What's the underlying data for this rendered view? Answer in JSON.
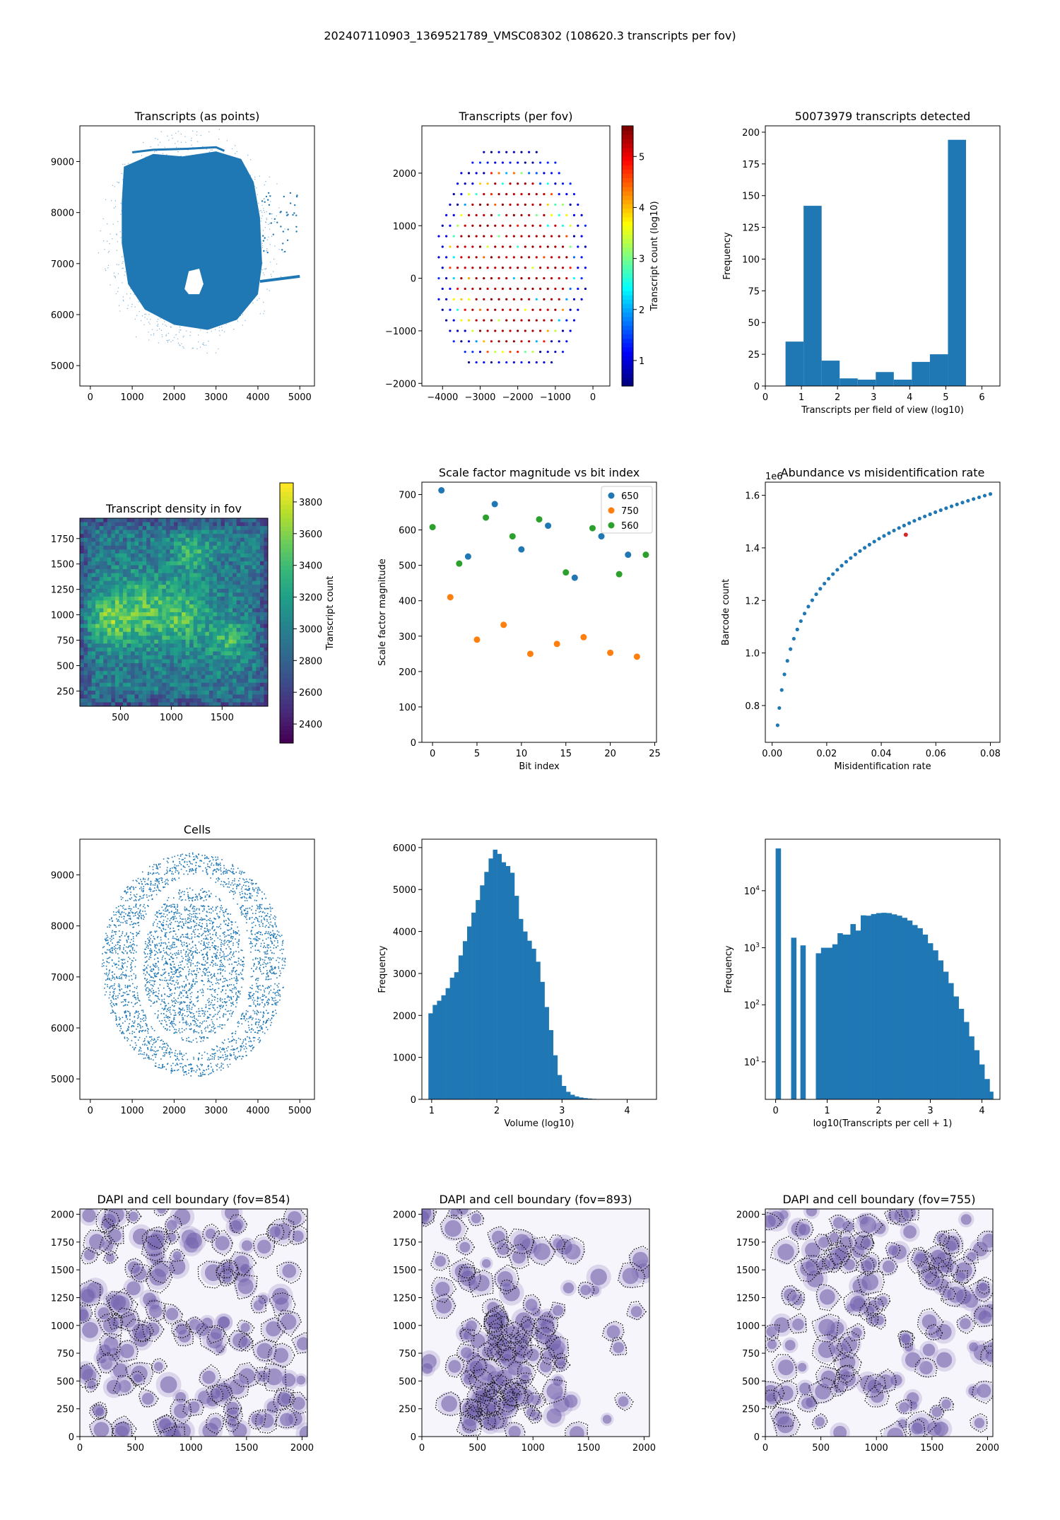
{
  "figure_title": "202407110903_1369521789_VMSC08302 (108620.3 transcripts per fov)",
  "colors": {
    "blue": "#1f77b4",
    "orange": "#ff7f0e",
    "green": "#2ca02c",
    "axis": "#000000"
  },
  "chart_data": [
    {
      "id": "points",
      "type": "scatter",
      "title": "Transcripts (as points)",
      "xlabel": "",
      "ylabel": "",
      "xlim": [
        -250,
        5350
      ],
      "ylim": [
        4600,
        9700
      ],
      "xticks": [
        0,
        1000,
        2000,
        3000,
        4000,
        5000
      ],
      "yticks": [
        5000,
        6000,
        7000,
        8000,
        9000
      ],
      "tissue_outline": [
        [
          800,
          8900
        ],
        [
          1500,
          9150
        ],
        [
          2200,
          9100
        ],
        [
          3000,
          9200
        ],
        [
          3600,
          9050
        ],
        [
          3900,
          8600
        ],
        [
          4050,
          7900
        ],
        [
          4100,
          7000
        ],
        [
          4000,
          6400
        ],
        [
          3500,
          5900
        ],
        [
          2800,
          5700
        ],
        [
          2000,
          5800
        ],
        [
          1300,
          6100
        ],
        [
          900,
          6600
        ],
        [
          750,
          7400
        ],
        [
          750,
          8200
        ]
      ],
      "hole": [
        [
          2250,
          6500
        ],
        [
          2350,
          6850
        ],
        [
          2600,
          6900
        ],
        [
          2700,
          6600
        ],
        [
          2600,
          6400
        ],
        [
          2350,
          6400
        ]
      ],
      "strip": [
        [
          4050,
          6650
        ],
        [
          5000,
          6750
        ]
      ]
    },
    {
      "id": "perfov",
      "type": "scatter",
      "title": "Transcripts (per fov)",
      "xlabel": "",
      "ylabel": "",
      "xlim": [
        -4550,
        450
      ],
      "ylim": [
        -2050,
        2900
      ],
      "xticks": [
        -4000,
        -3000,
        -2000,
        -1000,
        0
      ],
      "yticks": [
        -2000,
        -1000,
        0,
        1000,
        2000
      ],
      "colorbar": {
        "label": "Transcript count (log10)",
        "min": 0.5,
        "max": 5.6,
        "ticks": [
          1,
          2,
          3,
          4,
          5
        ]
      },
      "grid": {
        "x_start": -4200,
        "x_step": 200,
        "y_start": 2600,
        "y_step": -200,
        "rows": 22
      }
    },
    {
      "id": "hist_fov",
      "type": "bar",
      "title": "50073979 transcripts detected",
      "xlabel": "Transcripts per field of view (log10)",
      "ylabel": "Frequency",
      "xlim": [
        0,
        6.5
      ],
      "ylim": [
        0,
        205
      ],
      "xticks": [
        0,
        1,
        2,
        3,
        4,
        5,
        6
      ],
      "yticks": [
        0,
        25,
        50,
        75,
        100,
        125,
        150,
        175,
        200
      ],
      "bin_edges": [
        0.56,
        1.06,
        1.56,
        2.06,
        2.56,
        3.06,
        3.56,
        4.06,
        4.56,
        5.06,
        5.56
      ],
      "values": [
        35,
        142,
        20,
        6,
        5,
        11,
        5,
        19,
        25,
        194
      ]
    },
    {
      "id": "density",
      "type": "heatmap",
      "title": "Transcript density in fov",
      "xlabel": "",
      "ylabel": "",
      "xlim": [
        100,
        1950
      ],
      "ylim": [
        100,
        1950
      ],
      "xticks": [
        500,
        1000,
        1500
      ],
      "yticks": [
        250,
        500,
        750,
        1000,
        1250,
        1500,
        1750
      ],
      "colorbar": {
        "label": "Transcript count",
        "min": 2280,
        "max": 3920,
        "ticks": [
          2400,
          2600,
          2800,
          3000,
          3200,
          3400,
          3600,
          3800
        ]
      }
    },
    {
      "id": "scale",
      "type": "scatter",
      "title": "Scale factor magnitude vs bit index",
      "xlabel": "Bit index",
      "ylabel": "Scale factor magnitude",
      "xlim": [
        -1.2,
        25.2
      ],
      "ylim": [
        0,
        735
      ],
      "xticks": [
        0,
        5,
        10,
        15,
        20,
        25
      ],
      "yticks": [
        0,
        100,
        200,
        300,
        400,
        500,
        600,
        700
      ],
      "legend": "top-right",
      "series": [
        {
          "name": "650",
          "x": [
            1,
            4,
            7,
            10,
            13,
            16,
            19,
            22
          ],
          "y": [
            712,
            525,
            673,
            545,
            612,
            465,
            582,
            530
          ]
        },
        {
          "name": "750",
          "x": [
            2,
            5,
            8,
            11,
            14,
            17,
            20,
            23
          ],
          "y": [
            410,
            290,
            332,
            250,
            278,
            297,
            253,
            242
          ]
        },
        {
          "name": "560",
          "x": [
            0,
            3,
            6,
            9,
            12,
            15,
            18,
            21,
            24
          ],
          "y": [
            608,
            505,
            635,
            582,
            630,
            480,
            605,
            475,
            530
          ]
        }
      ]
    },
    {
      "id": "abundance",
      "type": "scatter",
      "title": "Abundance vs misidentification rate",
      "xlabel": "Misidentification rate",
      "ylabel": "Barcode count",
      "multiplier": "1e6",
      "xlim": [
        -0.0025,
        0.0835
      ],
      "ylim": [
        0.66,
        1.65
      ],
      "xticks": [
        0.0,
        0.02,
        0.04,
        0.06,
        0.08
      ],
      "yticks": [
        0.8,
        1.0,
        1.2,
        1.4,
        1.6
      ],
      "xtick_labels": [
        "0.00",
        "0.02",
        "0.04",
        "0.06",
        "0.08"
      ],
      "ytick_labels": [
        "0.8",
        "1.0",
        "1.2",
        "1.4",
        "1.6"
      ],
      "curve": {
        "x_min": 0.002,
        "x_max": 0.08,
        "points": 48
      },
      "highlight": {
        "x": 0.049,
        "y": 1.45
      }
    },
    {
      "id": "cells",
      "type": "scatter",
      "title": "Cells",
      "xlabel": "",
      "ylabel": "",
      "xlim": [
        -250,
        5350
      ],
      "ylim": [
        4600,
        9700
      ],
      "xticks": [
        0,
        1000,
        2000,
        3000,
        4000,
        5000
      ],
      "yticks": [
        5000,
        6000,
        7000,
        8000,
        9000
      ]
    },
    {
      "id": "volume",
      "type": "bar",
      "title": "",
      "xlabel": "Volume (log10)",
      "ylabel": "Frequency",
      "xlim": [
        0.85,
        4.45
      ],
      "ylim": [
        0,
        6200
      ],
      "xticks": [
        1,
        2,
        3,
        4
      ],
      "yticks": [
        0,
        1000,
        2000,
        3000,
        4000,
        5000,
        6000
      ],
      "bin_start": 0.95,
      "bin_width": 0.066,
      "values": [
        2050,
        2250,
        2350,
        2480,
        2650,
        2900,
        3030,
        3430,
        3770,
        4120,
        4450,
        4750,
        5100,
        5420,
        5740,
        5950,
        5850,
        5650,
        5560,
        5400,
        4850,
        4300,
        4000,
        3780,
        3590,
        3280,
        2800,
        2200,
        1650,
        1050,
        580,
        320,
        180,
        110,
        70,
        45,
        30,
        20,
        12,
        8
      ]
    },
    {
      "id": "tpc",
      "type": "bar",
      "title": "",
      "xlabel": "log10(Transcripts per cell + 1)",
      "ylabel": "Frequency",
      "xscale": "linear",
      "yscale": "log",
      "xlim": [
        -0.2,
        4.35
      ],
      "ylim": [
        2.2,
        80000
      ],
      "xticks": [
        0,
        1,
        2,
        3,
        4
      ],
      "yticks": [
        10,
        100,
        1000,
        10000
      ],
      "ytick_labels": [
        "10",
        "10",
        "10",
        "10"
      ],
      "ytick_exponents": [
        "1",
        "2",
        "3",
        "4"
      ],
      "bins": [
        {
          "x0": 0.0,
          "x1": 0.1,
          "v": 55000
        },
        {
          "x0": 0.3,
          "x1": 0.4,
          "v": 1500
        },
        {
          "x0": 0.48,
          "x1": 0.58,
          "v": 1100
        },
        {
          "x0": 0.78,
          "x1": 0.88,
          "v": 800
        },
        {
          "x0": 0.88,
          "x1": 1.1,
          "v": 1000
        },
        {
          "x0": 1.1,
          "x1": 1.2,
          "v": 1150
        },
        {
          "x0": 1.2,
          "x1": 1.3,
          "v": 1800
        },
        {
          "x0": 1.3,
          "x1": 1.45,
          "v": 1700
        },
        {
          "x0": 1.45,
          "x1": 1.55,
          "v": 2600
        },
        {
          "x0": 1.55,
          "x1": 1.65,
          "v": 2000
        },
        {
          "x0": 1.65,
          "x1": 1.75,
          "v": 3700
        },
        {
          "x0": 1.75,
          "x1": 1.85,
          "v": 3650
        },
        {
          "x0": 1.85,
          "x1": 1.95,
          "v": 3900
        },
        {
          "x0": 1.95,
          "x1": 2.05,
          "v": 4050
        },
        {
          "x0": 2.05,
          "x1": 2.15,
          "v": 4100
        },
        {
          "x0": 2.15,
          "x1": 2.25,
          "v": 4050
        },
        {
          "x0": 2.25,
          "x1": 2.35,
          "v": 3850
        },
        {
          "x0": 2.35,
          "x1": 2.45,
          "v": 3650
        },
        {
          "x0": 2.45,
          "x1": 2.55,
          "v": 3350
        },
        {
          "x0": 2.55,
          "x1": 2.65,
          "v": 3000
        },
        {
          "x0": 2.65,
          "x1": 2.75,
          "v": 2500
        },
        {
          "x0": 2.75,
          "x1": 2.85,
          "v": 2200
        },
        {
          "x0": 2.85,
          "x1": 2.95,
          "v": 1700
        },
        {
          "x0": 2.95,
          "x1": 3.05,
          "v": 1200
        },
        {
          "x0": 3.05,
          "x1": 3.15,
          "v": 900
        },
        {
          "x0": 3.15,
          "x1": 3.25,
          "v": 600
        },
        {
          "x0": 3.25,
          "x1": 3.35,
          "v": 380
        },
        {
          "x0": 3.35,
          "x1": 3.45,
          "v": 240
        },
        {
          "x0": 3.45,
          "x1": 3.55,
          "v": 140
        },
        {
          "x0": 3.55,
          "x1": 3.65,
          "v": 85
        },
        {
          "x0": 3.65,
          "x1": 3.75,
          "v": 50
        },
        {
          "x0": 3.75,
          "x1": 3.85,
          "v": 28
        },
        {
          "x0": 3.85,
          "x1": 3.95,
          "v": 16
        },
        {
          "x0": 3.95,
          "x1": 4.05,
          "v": 9
        },
        {
          "x0": 4.05,
          "x1": 4.15,
          "v": 5
        },
        {
          "x0": 4.15,
          "x1": 4.22,
          "v": 3
        }
      ]
    },
    {
      "id": "dapi1",
      "type": "heatmap",
      "title": "DAPI and cell boundary (fov=854)",
      "xlim": [
        0,
        2048
      ],
      "ylim": [
        0,
        2048
      ],
      "xticks": [
        0,
        500,
        1000,
        1500,
        2000
      ],
      "yticks": [
        0,
        250,
        500,
        750,
        1000,
        1250,
        1500,
        1750,
        2000
      ],
      "seed": 854,
      "cells": 150,
      "cluster": null
    },
    {
      "id": "dapi2",
      "type": "heatmap",
      "title": "DAPI and cell boundary (fov=893)",
      "xlim": [
        0,
        2048
      ],
      "ylim": [
        0,
        2048
      ],
      "xticks": [
        0,
        500,
        1000,
        1500,
        2000
      ],
      "yticks": [
        0,
        250,
        500,
        750,
        1000,
        1250,
        1500,
        1750,
        2000
      ],
      "seed": 893,
      "cells": 150,
      "cluster": "left"
    },
    {
      "id": "dapi3",
      "type": "heatmap",
      "title": "DAPI and cell boundary (fov=755)",
      "xlim": [
        0,
        2048
      ],
      "ylim": [
        0,
        2048
      ],
      "xticks": [
        0,
        500,
        1000,
        1500,
        2000
      ],
      "yticks": [
        0,
        250,
        500,
        750,
        1000,
        1250,
        1500,
        1750,
        2000
      ],
      "seed": 755,
      "cells": 140,
      "cluster": null
    }
  ]
}
